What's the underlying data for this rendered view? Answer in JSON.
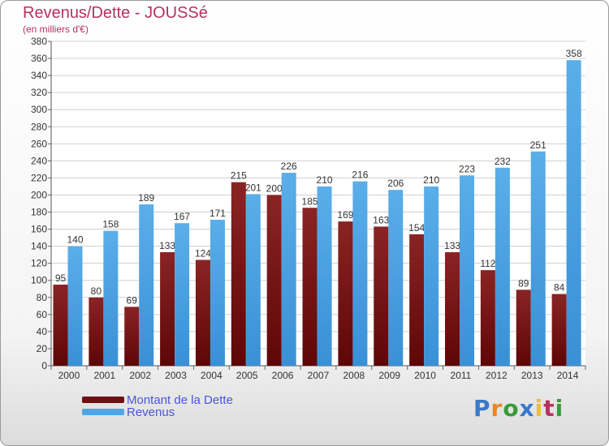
{
  "chart_data": {
    "type": "bar",
    "title": "Revenus/Dette - JOUSSé",
    "subtitle": "(en milliers d'€)",
    "categories": [
      "2000",
      "2001",
      "2002",
      "2003",
      "2004",
      "2005",
      "2006",
      "2007",
      "2008",
      "2009",
      "2010",
      "2011",
      "2012",
      "2013",
      "2014"
    ],
    "series": [
      {
        "name": "Montant de la Dette",
        "color": "#7b1515",
        "values": [
          95,
          80,
          69,
          133,
          124,
          215,
          200,
          185,
          169,
          163,
          154,
          133,
          112,
          89,
          84
        ]
      },
      {
        "name": "Revenus",
        "color": "#4fa6e6",
        "values": [
          140,
          158,
          189,
          167,
          171,
          201,
          226,
          210,
          216,
          206,
          210,
          223,
          232,
          251,
          358
        ]
      }
    ],
    "ylim": [
      0,
      380
    ],
    "ytick_step": 20,
    "grid": true,
    "legend_position": "bottom-left"
  },
  "legend": {
    "items": [
      {
        "label": "Montant de la Dette",
        "color": "#6e1010"
      },
      {
        "label": "Revenus",
        "color": "#4fa6e6"
      }
    ]
  },
  "logo": {
    "letters": [
      "P",
      "r",
      "o",
      "x",
      "i",
      "t",
      "i"
    ],
    "colors": [
      "#3a78c8",
      "#e8862a",
      "#3a9a3a",
      "#3a78c8",
      "#e8c22a",
      "#b5325e",
      "#3a9a3a"
    ]
  }
}
